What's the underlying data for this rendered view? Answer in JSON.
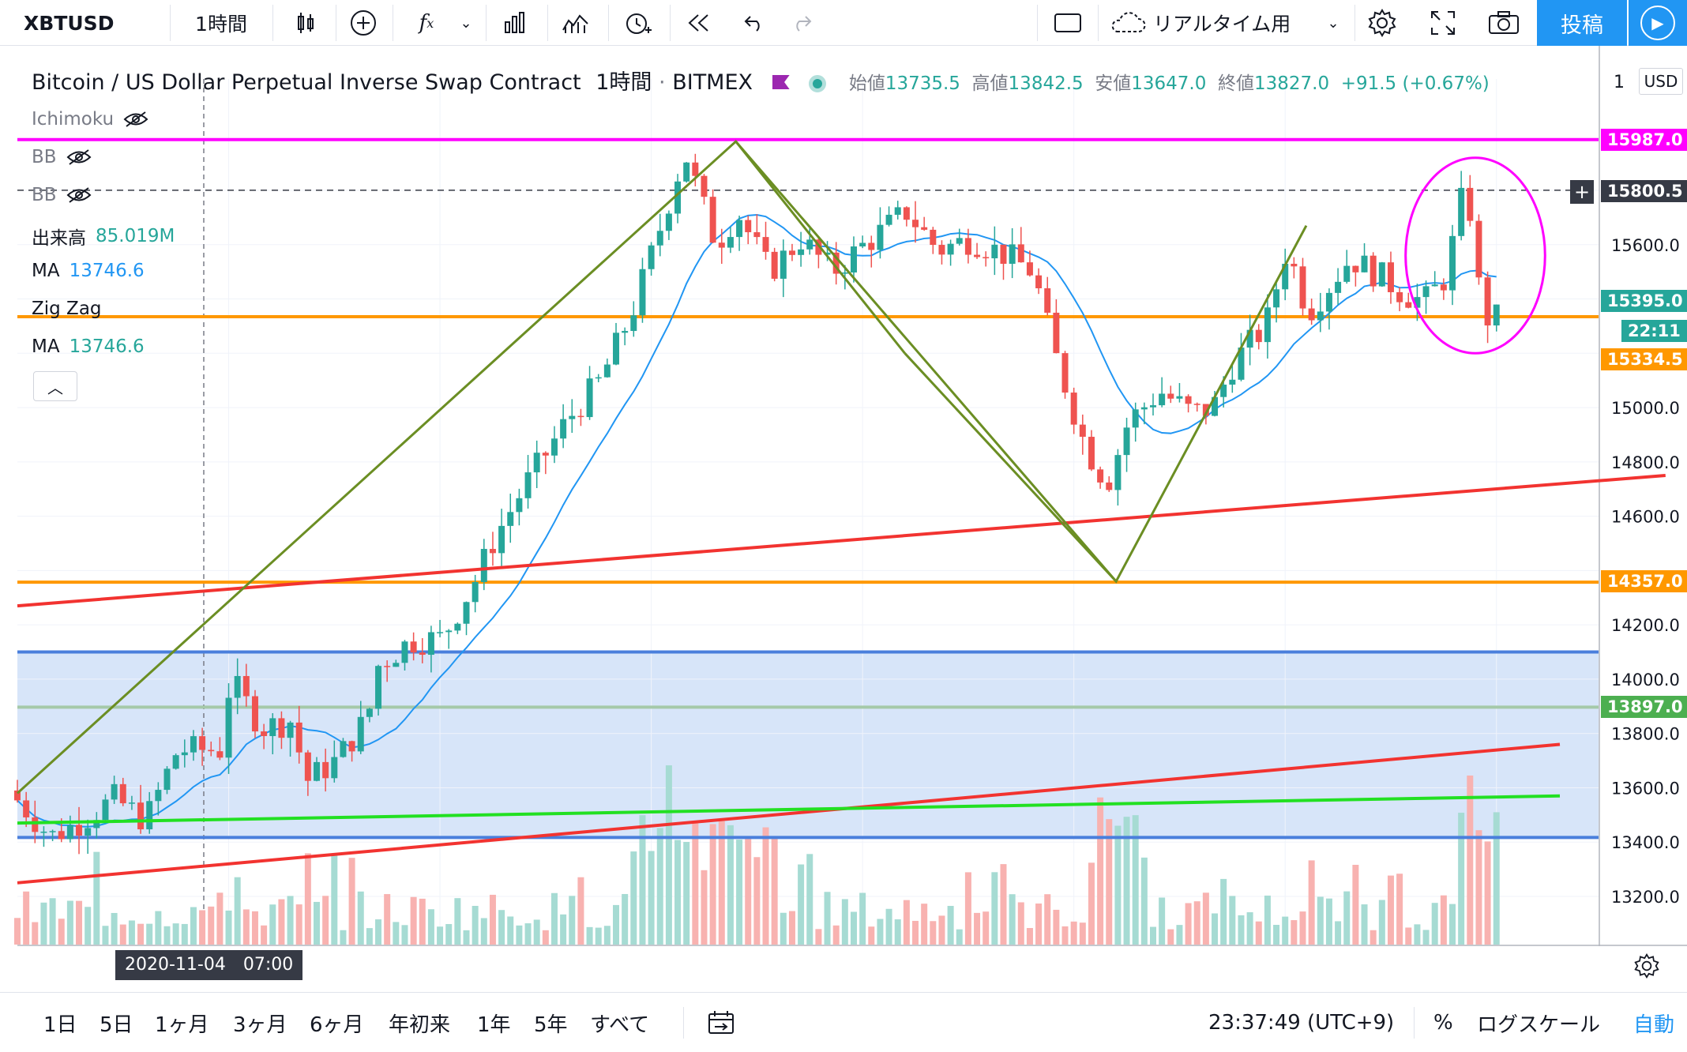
{
  "toolbar": {
    "symbol": "XBTUSD",
    "interval": "1時間",
    "realtime_label": "リアルタイム用",
    "post_label": "投稿",
    "icons": [
      "candles-icon",
      "add-compare-icon",
      "indicators-icon",
      "chevron-down-icon",
      "templates-icon",
      "bar-pattern-icon",
      "alert-icon",
      "replay-icon",
      "undo-icon",
      "redo-icon",
      "rectangle-icon",
      "cloud-icon",
      "gear-icon",
      "fullscreen-icon",
      "camera-icon",
      "play-icon"
    ]
  },
  "legend": {
    "title": "Bitcoin / US Dollar Perpetual Inverse Swap Contract",
    "interval": "1時間",
    "exchange": "BITMEX",
    "open_label": "始値",
    "open": "13735.5",
    "high_label": "高値",
    "high": "13842.5",
    "low_label": "安値",
    "low": "13647.0",
    "close_label": "終値",
    "close": "13827.0",
    "change": "+91.5 (+0.67%)"
  },
  "indicators": [
    {
      "name": "Ichimoku",
      "value": ""
    },
    {
      "name": "BB",
      "value": ""
    },
    {
      "name": "BB",
      "value": ""
    },
    {
      "name": "出来高",
      "value": "85.019M"
    },
    {
      "name": "MA",
      "value": "13746.6"
    },
    {
      "name": "Zig Zag",
      "value": ""
    },
    {
      "name": "MA",
      "value": "13746.6"
    }
  ],
  "axis": {
    "currency": "USD",
    "top_tick": "1",
    "price_labels": [
      {
        "price": "15987.0",
        "color": "#ff00ff"
      },
      {
        "price": "15800.5",
        "color": "#363a45"
      },
      {
        "price": "15395.0",
        "color": "#26a69a"
      },
      {
        "price": "22:11",
        "color": "#26a69a"
      },
      {
        "price": "15334.5",
        "color": "#ff9800"
      },
      {
        "price": "14357.0",
        "color": "#ff9800"
      },
      {
        "price": "13897.0",
        "color": "#4caf50"
      }
    ],
    "crosshair_date": "2020-11-04　07:00"
  },
  "chart_data": {
    "type": "candlestick",
    "timeframe": "1時間",
    "y_ticks": [
      13200,
      13400,
      13600,
      13800,
      14000,
      14200,
      14400,
      14600,
      14800,
      15000,
      15200,
      15400,
      15600,
      15800
    ],
    "y_tick_labels": [
      "13200.0",
      "13400.0",
      "13600.0",
      "13800.0",
      "14000.0",
      "14200.0",
      "",
      "14600.0",
      "14800.0",
      "15000.0",
      "",
      "",
      "15600.0",
      ""
    ],
    "ylim": [
      13020,
      16240
    ],
    "x_ticks": [
      "5",
      "6",
      "7",
      "8",
      "9",
      "10",
      "11"
    ],
    "x_tick_positions": [
      4,
      5,
      6,
      7,
      8,
      9,
      10
    ],
    "xlim": [
      3.0,
      10.3
    ],
    "candle_anchors": [
      [
        3.0,
        13590
      ],
      [
        3.2,
        13420
      ],
      [
        3.35,
        13480
      ],
      [
        3.5,
        13560
      ],
      [
        3.65,
        13480
      ],
      [
        3.8,
        13740
      ],
      [
        4.0,
        13740
      ],
      [
        4.05,
        14000
      ],
      [
        4.2,
        13820
      ],
      [
        4.35,
        13850
      ],
      [
        4.4,
        13620
      ],
      [
        4.55,
        13700
      ],
      [
        4.7,
        13860
      ],
      [
        4.75,
        14050
      ],
      [
        4.9,
        14140
      ],
      [
        5.05,
        14150
      ],
      [
        5.2,
        14350
      ],
      [
        5.3,
        14520
      ],
      [
        5.45,
        14720
      ],
      [
        5.65,
        14960
      ],
      [
        5.8,
        15100
      ],
      [
        5.95,
        15350
      ],
      [
        6.05,
        15580
      ],
      [
        6.2,
        15940
      ],
      [
        6.35,
        15600
      ],
      [
        6.45,
        15720
      ],
      [
        6.6,
        15500
      ],
      [
        6.75,
        15620
      ],
      [
        6.9,
        15500
      ],
      [
        7.05,
        15600
      ],
      [
        7.25,
        15720
      ],
      [
        7.4,
        15580
      ],
      [
        7.55,
        15620
      ],
      [
        7.7,
        15570
      ],
      [
        7.85,
        15500
      ],
      [
        7.95,
        15200
      ],
      [
        8.1,
        14850
      ],
      [
        8.2,
        14720
      ],
      [
        8.3,
        14950
      ],
      [
        8.45,
        15060
      ],
      [
        8.6,
        14980
      ],
      [
        8.7,
        15000
      ],
      [
        8.8,
        15170
      ],
      [
        8.95,
        15300
      ],
      [
        9.05,
        15590
      ],
      [
        9.15,
        15350
      ],
      [
        9.25,
        15450
      ],
      [
        9.35,
        15550
      ],
      [
        9.5,
        15480
      ],
      [
        9.6,
        15420
      ],
      [
        9.7,
        15390
      ],
      [
        9.8,
        15480
      ],
      [
        9.9,
        15850
      ],
      [
        9.95,
        15470
      ],
      [
        10.0,
        15330
      ]
    ],
    "horizontal_lines": [
      {
        "price": 15987,
        "color": "#ff00ff",
        "style": "solid"
      },
      {
        "price": 15800.5,
        "color": "#363a45",
        "style": "dashed"
      },
      {
        "price": 15334.5,
        "color": "#ff9800",
        "style": "solid"
      },
      {
        "price": 14357,
        "color": "#ff9800",
        "style": "solid"
      },
      {
        "price": 14100,
        "color": "#4a7fdc",
        "style": "solid"
      },
      {
        "price": 13897,
        "color": "#a5c9a9",
        "style": "solid"
      },
      {
        "price": 13417,
        "color": "#4a7fdc",
        "style": "solid"
      }
    ],
    "range_box": {
      "top": 14100,
      "bottom": 13417,
      "color": "#c9dcf7"
    },
    "trend_lines": [
      {
        "from": [
          3.0,
          13250
        ],
        "to": [
          10.3,
          13760
        ],
        "color": "#f23330"
      },
      {
        "from": [
          3.0,
          14270
        ],
        "to": [
          10.8,
          14750
        ],
        "color": "#f23330"
      },
      {
        "from": [
          3.0,
          13470
        ],
        "to": [
          10.3,
          13570
        ],
        "color": "#22e022"
      }
    ],
    "zigzag": [
      [
        3.0,
        13580
      ],
      [
        6.4,
        15980
      ],
      [
        7.2,
        14360
      ],
      [
        8.2,
        14360
      ],
      [
        8.2,
        14360
      ],
      [
        9.1,
        15670
      ]
    ],
    "zigzag_points": [
      [
        3.0,
        13580
      ],
      [
        6.4,
        15980
      ],
      [
        8.2,
        14360
      ],
      [
        9.1,
        15670
      ]
    ],
    "ellipse": {
      "cx": 9.9,
      "cy": 15560,
      "rx": 0.33,
      "ry": 360,
      "color": "#ff00ff"
    }
  },
  "bottom": {
    "ranges": [
      "1日",
      "5日",
      "1ヶ月",
      "3ヶ月",
      "6ヶ月",
      "年初来",
      "1年",
      "5年",
      "すべて"
    ],
    "time": "23:37:49 (UTC+9)",
    "percent": "%",
    "log": "ログスケール",
    "auto": "自動"
  }
}
